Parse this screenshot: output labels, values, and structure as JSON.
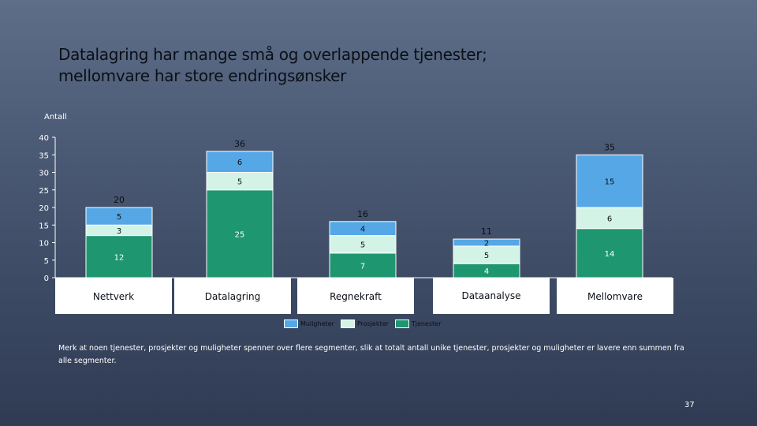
{
  "slide": {
    "title_line1": "Datalagring har mange små og overlappende tjenester;",
    "title_line2": "mellomvare har store endringsønsker",
    "footnote": "Merk at noen tjenester, prosjekter og muligheter spenner over flere segmenter, slik at totalt antall unike tjenester, prosjekter og muligheter er lavere enn summen fra alle segmenter.",
    "page_number": "37"
  },
  "chart_data": {
    "type": "bar",
    "stacked": true,
    "ylabel": "Antall",
    "ylim": [
      0,
      40
    ],
    "yticks": [
      0,
      5,
      10,
      15,
      20,
      25,
      30,
      35,
      40
    ],
    "categories": [
      "Nettverk",
      "Datalagring",
      "Regnekraft",
      "Dataanalyse",
      "Mellomvare"
    ],
    "series": [
      {
        "name": "Tjenester",
        "values": [
          12,
          25,
          7,
          4,
          14
        ],
        "color": "#1e9670"
      },
      {
        "name": "Prosjekter",
        "values": [
          3,
          5,
          5,
          5,
          6
        ],
        "color": "#d3f3e7"
      },
      {
        "name": "Muligheter",
        "values": [
          5,
          6,
          4,
          2,
          15
        ],
        "color": "#56a7e6"
      }
    ],
    "totals": [
      20,
      36,
      16,
      11,
      35
    ],
    "legend": {
      "position": "bottom",
      "order": [
        "Muligheter",
        "Prosjekter",
        "Tjenester"
      ]
    },
    "grid": false
  }
}
